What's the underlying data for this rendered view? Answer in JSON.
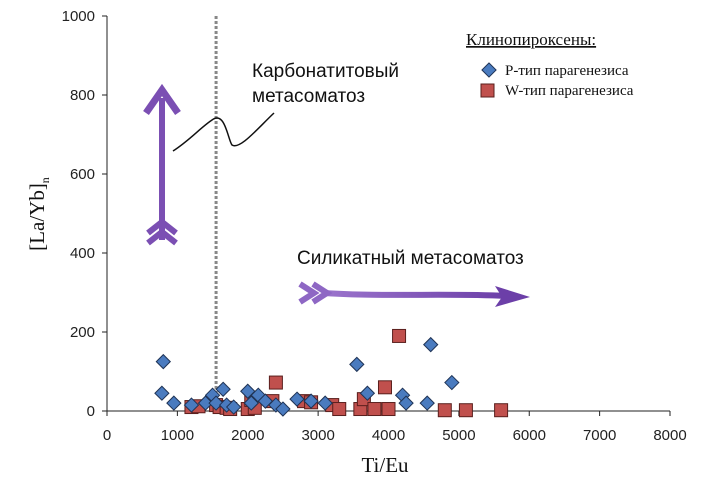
{
  "chart_data": {
    "type": "scatter",
    "xlabel": "Ti/Eu",
    "ylabel": "[La/Yb]n",
    "xlim": [
      0,
      8000
    ],
    "ylim": [
      0,
      1000
    ],
    "xticks": [
      "0",
      "1000",
      "2000",
      "3000",
      "4000",
      "5000",
      "6000",
      "7000",
      "8000"
    ],
    "yticks": [
      "0",
      "200",
      "400",
      "600",
      "800",
      "1000"
    ],
    "grid": false,
    "legend_title": "Клинопироксены:",
    "legend_position": "top-right",
    "series": [
      {
        "name": "P-тип парагенезиса",
        "marker": "diamond",
        "color": "#4a7bbf",
        "points": [
          [
            800,
            125
          ],
          [
            780,
            45
          ],
          [
            950,
            20
          ],
          [
            1200,
            15
          ],
          [
            1400,
            20
          ],
          [
            1500,
            40
          ],
          [
            1550,
            20
          ],
          [
            1650,
            55
          ],
          [
            1700,
            15
          ],
          [
            1800,
            10
          ],
          [
            2000,
            50
          ],
          [
            2050,
            20
          ],
          [
            2150,
            40
          ],
          [
            2250,
            25
          ],
          [
            2400,
            15
          ],
          [
            2500,
            5
          ],
          [
            2700,
            30
          ],
          [
            2900,
            25
          ],
          [
            3100,
            20
          ],
          [
            3550,
            118
          ],
          [
            3700,
            45
          ],
          [
            4200,
            40
          ],
          [
            4250,
            20
          ],
          [
            4600,
            168
          ],
          [
            4550,
            20
          ],
          [
            4900,
            72
          ]
        ]
      },
      {
        "name": "W-тип парагенезиса",
        "marker": "square",
        "color": "#c0504d",
        "points": [
          [
            1200,
            10
          ],
          [
            1300,
            12
          ],
          [
            1550,
            15
          ],
          [
            1600,
            10
          ],
          [
            1700,
            8
          ],
          [
            1750,
            5
          ],
          [
            2000,
            5
          ],
          [
            2050,
            28
          ],
          [
            2100,
            8
          ],
          [
            2350,
            25
          ],
          [
            2400,
            72
          ],
          [
            2800,
            25
          ],
          [
            2900,
            22
          ],
          [
            3200,
            15
          ],
          [
            3300,
            5
          ],
          [
            3600,
            5
          ],
          [
            3650,
            30
          ],
          [
            3800,
            5
          ],
          [
            4000,
            5
          ],
          [
            3950,
            60
          ],
          [
            4150,
            190
          ],
          [
            4800,
            2
          ],
          [
            5100,
            2
          ],
          [
            5600,
            2
          ]
        ]
      }
    ],
    "annotations": {
      "carbonatite": "Карбонатитовый метасоматоз",
      "carbonatite_line1": "Карбонатитовый",
      "carbonatite_line2": "метасоматоз",
      "silicate": "Силикатный метасоматоз"
    }
  },
  "colors": {
    "arrow": "#7b4fb3",
    "diamond": "#4a7bbf",
    "square": "#c0504d",
    "dotted_line": "#888888"
  },
  "reference_line_x": 1550
}
